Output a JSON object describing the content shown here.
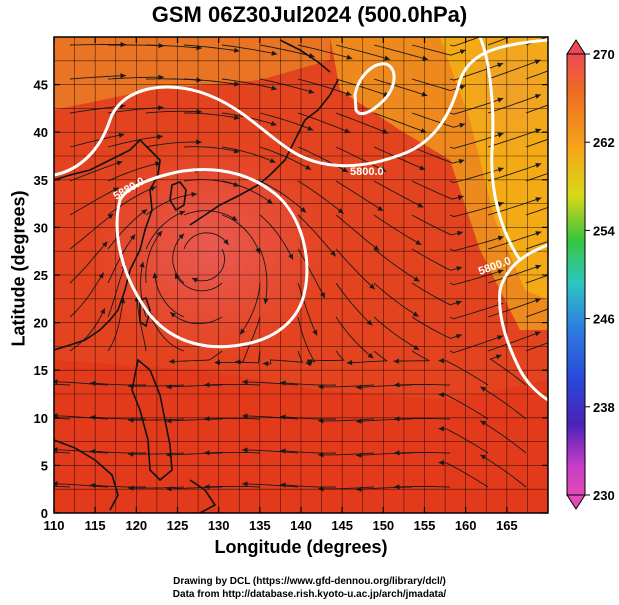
{
  "title": "GSM 06Z30Jul2024 (500.0hPa)",
  "xlabel": "Longitude (degrees)",
  "ylabel": "Latitude  (degrees)",
  "credits": {
    "line1": "Drawing by DCL (https://www.gfd-dennou.org/library/dcl/)",
    "line2": "Data from http://database.rish.kyoto-u.ac.jp/arch/jmadata/"
  },
  "map": {
    "lon_range": [
      110,
      170
    ],
    "lat_range": [
      0,
      50
    ],
    "x_ticks": [
      "110",
      "115",
      "120",
      "125",
      "130",
      "135",
      "140",
      "145",
      "150",
      "155",
      "160",
      "165"
    ],
    "y_ticks": [
      "0",
      "5",
      "10",
      "15",
      "20",
      "25",
      "30",
      "35",
      "40",
      "45"
    ],
    "contour_labels": [
      "5800.0",
      "5800.0",
      "5880.0"
    ],
    "field": "temperature (K)",
    "colors": {
      "warm_core": "#e8574a",
      "mid": "#e6421e",
      "north": "#ea8b1e",
      "northeast": "#f4b300",
      "contour": "#ffffff",
      "streamline": "#000000"
    }
  },
  "colorbar": {
    "ticks": [
      "270",
      "262",
      "254",
      "246",
      "238",
      "230"
    ],
    "colors": [
      "#ee4a55",
      "#ee6a22",
      "#f5a81a",
      "#d9d818",
      "#3ac53c",
      "#2cc6c2",
      "#2e7ee0",
      "#2c46d8",
      "#4a22b8",
      "#c53cc9",
      "#e44ab8"
    ]
  }
}
